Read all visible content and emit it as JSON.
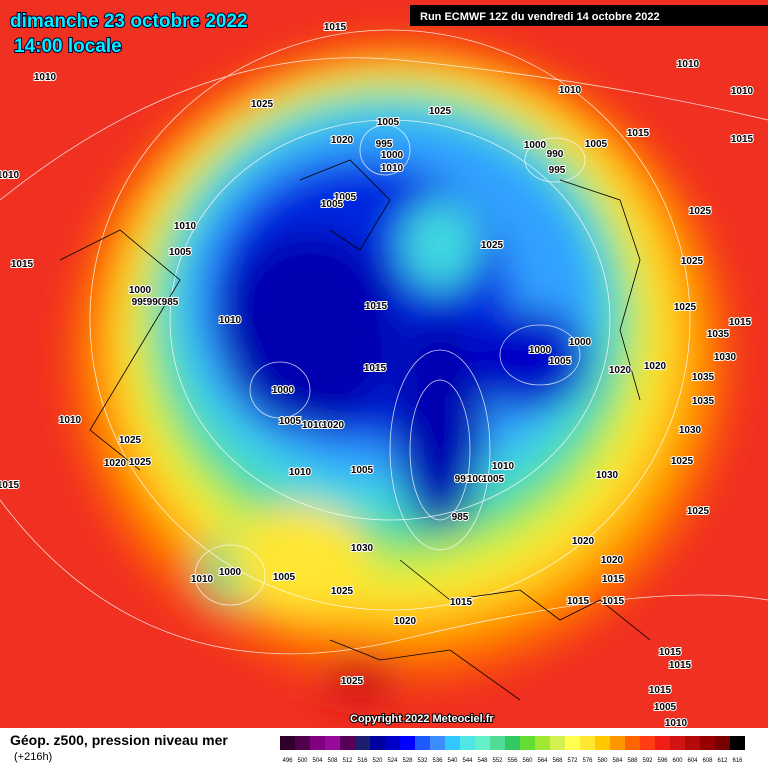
{
  "header": {
    "date": "dimanche 23 octobre 2022",
    "time": "14:00 locale",
    "run": "Run ECMWF 12Z du vendredi 14 octobre 2022"
  },
  "copyright": "Copyright 2022 Meteociel.fr",
  "footer": {
    "title": "Géop. z500, pression niveau mer",
    "lead": "(+216h)"
  },
  "isobar_labels": [
    "1015",
    "1010",
    "1025",
    "1010",
    "1010",
    "1010",
    "1025",
    "1005",
    "995",
    "1000",
    "1020",
    "1010",
    "1000",
    "990",
    "995",
    "1005",
    "1015",
    "1015",
    "1010",
    "1005",
    "1005",
    "1025",
    "1010",
    "1025",
    "1005",
    "1015",
    "1025",
    "1000",
    "995",
    "990",
    "985",
    "1015",
    "1025",
    "1010",
    "1015",
    "1035",
    "1000",
    "1000",
    "1005",
    "1015",
    "1020",
    "1020",
    "1030",
    "1035",
    "1000",
    "1035",
    "1005",
    "1010",
    "1020",
    "1010",
    "1030",
    "1025",
    "1020",
    "1025",
    "1005",
    "1010",
    "1025",
    "1010",
    "1030",
    "995",
    "1000",
    "1005",
    "1015",
    "985",
    "1025",
    "1020",
    "1030",
    "1020",
    "1015",
    "1000",
    "1005",
    "1010",
    "1015",
    "1025",
    "1015",
    "1015",
    "1020",
    "1015",
    "1015",
    "1025",
    "1015",
    "1005",
    "1010"
  ],
  "colorbar": {
    "labels": [
      496,
      500,
      504,
      508,
      512,
      516,
      520,
      524,
      528,
      532,
      536,
      540,
      544,
      548,
      552,
      556,
      560,
      564,
      568,
      572,
      576,
      580,
      584,
      588,
      592,
      596,
      600,
      604,
      608,
      612,
      616
    ],
    "colors": [
      "#30002a",
      "#50004a",
      "#800080",
      "#9a0a9a",
      "#580058",
      "#1e1e6e",
      "#0000a0",
      "#0000c8",
      "#0000ff",
      "#1e5aff",
      "#3c8cff",
      "#32c8ff",
      "#50e6e6",
      "#64f0c8",
      "#50dc96",
      "#32c864",
      "#64dc32",
      "#a0e632",
      "#d2f050",
      "#ffff50",
      "#ffe632",
      "#ffc800",
      "#ff9600",
      "#ff6400",
      "#ff3c14",
      "#f01e14",
      "#d21414",
      "#b40a0a",
      "#960000",
      "#780000",
      "#000000"
    ]
  }
}
